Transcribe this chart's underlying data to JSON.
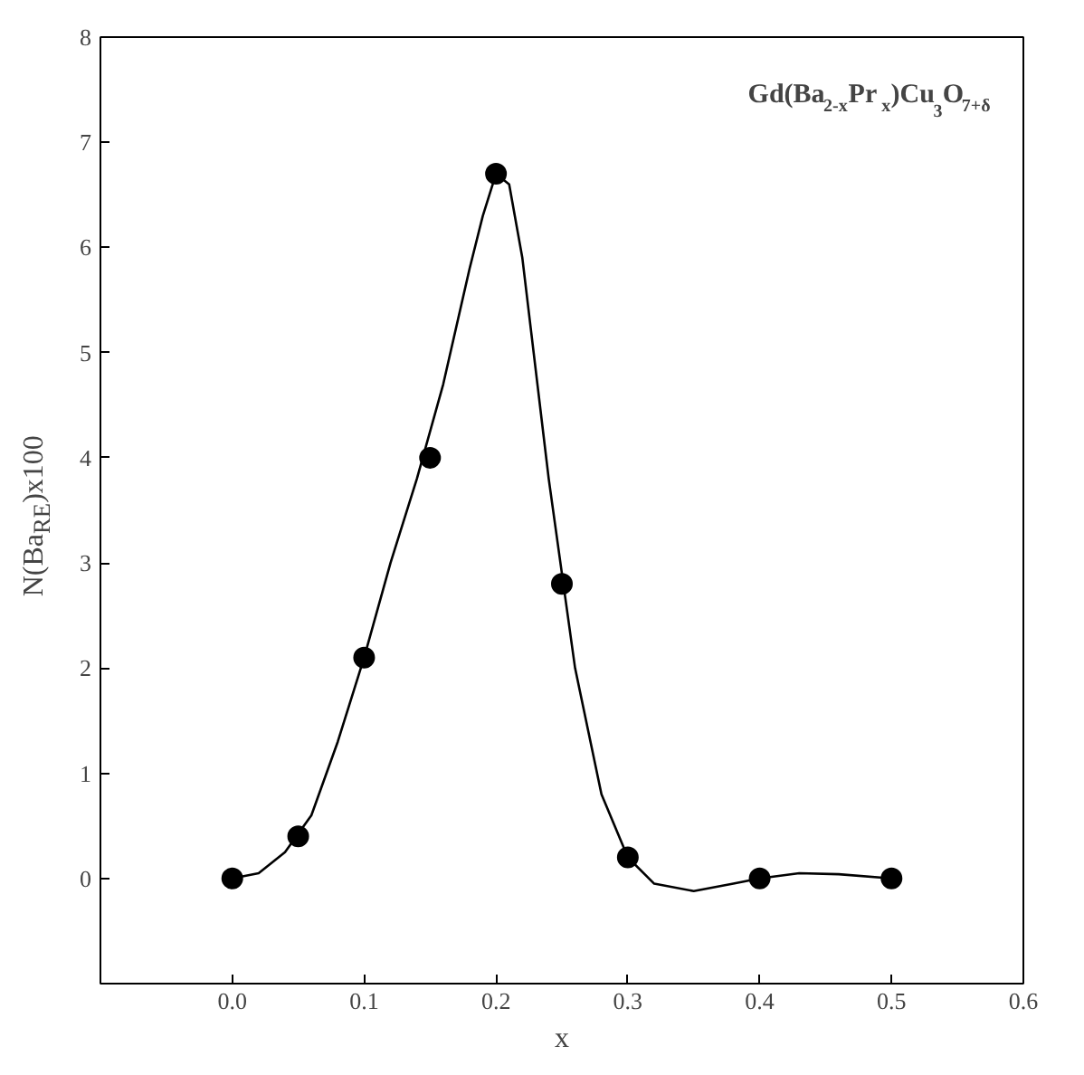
{
  "chart_data": {
    "type": "scatter",
    "xlabel": "x",
    "ylabel": "N(Ba$_{RE}$)x100",
    "annotations": [
      "Gd(Ba$_{2-x}$Pr$_{x}$)Cu$_{3}$O$_{7+δ}$"
    ],
    "series": [
      {
        "type": "line",
        "color": "#000000",
        "x": [
          0,
          0.02,
          0.04,
          0.06,
          0.08,
          0.1,
          0.12,
          0.14,
          0.16,
          0.18,
          0.19,
          0.2,
          0.21,
          0.22,
          0.24,
          0.26,
          0.28,
          0.3,
          0.32,
          0.35,
          0.38,
          0.4,
          0.43,
          0.46,
          0.5
        ],
        "values": [
          0,
          0.05,
          0.25,
          0.6,
          1.3,
          2.1,
          3.0,
          3.8,
          4.7,
          5.8,
          6.3,
          6.7,
          6.6,
          5.9,
          3.8,
          2.0,
          0.8,
          0.2,
          -0.05,
          -0.12,
          -0.05,
          0,
          0.05,
          0.04,
          0
        ]
      },
      {
        "color": "#000000",
        "marker": "circle",
        "x": [
          0,
          0.05,
          0.1,
          0.15,
          0.2,
          0.25,
          0.3,
          0.4,
          0.5
        ],
        "values": [
          0,
          0.4,
          2.1,
          4.0,
          6.7,
          2.8,
          0.2,
          0,
          0
        ]
      }
    ],
    "grid": false,
    "xlim": [
      -0.1,
      0.6
    ],
    "xticks": [
      {
        "value": 0,
        "label": "0.0"
      },
      0.1,
      0.2,
      0.3,
      0.4,
      0.5,
      0.6
    ],
    "ylim": [
      -1,
      8
    ],
    "yticks": [
      0,
      1,
      2,
      3,
      4,
      5,
      6,
      7,
      8
    ]
  }
}
